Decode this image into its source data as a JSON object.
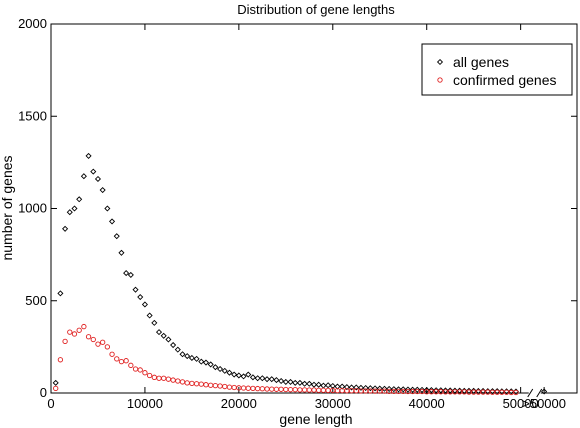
{
  "chart_data": {
    "type": "scatter",
    "title": "Distribution of gene lengths",
    "xlabel": "gene length",
    "ylabel": "number of genes",
    "xlim": [
      0,
      56000
    ],
    "ylim": [
      0,
      2000
    ],
    "x_ticks": [
      0,
      10000,
      20000,
      30000,
      40000,
      50000
    ],
    "x_tick_labels": [
      "0",
      "10000",
      "20000",
      "30000",
      "40000",
      "50000"
    ],
    "x_extra_tick": {
      "x": 52500,
      "label": ">50000"
    },
    "axis_break_at": 51500,
    "y_ticks": [
      0,
      500,
      1000,
      1500,
      2000
    ],
    "y_tick_labels": [
      "0",
      "500",
      "1000",
      "1500",
      "2000"
    ],
    "grid": false,
    "legend": {
      "placement": "top-right",
      "entries": [
        "all genes",
        "confirmed genes"
      ]
    },
    "series": [
      {
        "name": "all genes",
        "marker": "diamond",
        "color": "#000000",
        "points": [
          [
            500,
            55
          ],
          [
            1000,
            540
          ],
          [
            1500,
            890
          ],
          [
            2000,
            980
          ],
          [
            2500,
            1000
          ],
          [
            3000,
            1050
          ],
          [
            3500,
            1175
          ],
          [
            4000,
            1285
          ],
          [
            4500,
            1200
          ],
          [
            5000,
            1160
          ],
          [
            5500,
            1100
          ],
          [
            6000,
            1000
          ],
          [
            6500,
            930
          ],
          [
            7000,
            850
          ],
          [
            7500,
            760
          ],
          [
            8000,
            650
          ],
          [
            8500,
            640
          ],
          [
            9000,
            560
          ],
          [
            9500,
            520
          ],
          [
            10000,
            480
          ],
          [
            10500,
            420
          ],
          [
            11000,
            380
          ],
          [
            11500,
            330
          ],
          [
            12000,
            310
          ],
          [
            12500,
            290
          ],
          [
            13000,
            260
          ],
          [
            13500,
            235
          ],
          [
            14000,
            210
          ],
          [
            14500,
            200
          ],
          [
            15000,
            190
          ],
          [
            15500,
            185
          ],
          [
            16000,
            170
          ],
          [
            16500,
            165
          ],
          [
            17000,
            155
          ],
          [
            17500,
            140
          ],
          [
            18000,
            130
          ],
          [
            18500,
            120
          ],
          [
            19000,
            110
          ],
          [
            19500,
            100
          ],
          [
            20000,
            95
          ],
          [
            20500,
            90
          ],
          [
            21000,
            100
          ],
          [
            21500,
            85
          ],
          [
            22000,
            80
          ],
          [
            22500,
            80
          ],
          [
            23000,
            75
          ],
          [
            23500,
            75
          ],
          [
            24000,
            70
          ],
          [
            24500,
            65
          ],
          [
            25000,
            60
          ],
          [
            25500,
            60
          ],
          [
            26000,
            55
          ],
          [
            26500,
            55
          ],
          [
            27000,
            50
          ],
          [
            27500,
            50
          ],
          [
            28000,
            45
          ],
          [
            28500,
            45
          ],
          [
            29000,
            40
          ],
          [
            29500,
            42
          ],
          [
            30000,
            38
          ],
          [
            30500,
            35
          ],
          [
            31000,
            35
          ],
          [
            31500,
            32
          ],
          [
            32000,
            30
          ],
          [
            32500,
            30
          ],
          [
            33000,
            28
          ],
          [
            33500,
            27
          ],
          [
            34000,
            26
          ],
          [
            34500,
            25
          ],
          [
            35000,
            24
          ],
          [
            35500,
            23
          ],
          [
            36000,
            22
          ],
          [
            36500,
            21
          ],
          [
            37000,
            20
          ],
          [
            37500,
            20
          ],
          [
            38000,
            19
          ],
          [
            38500,
            18
          ],
          [
            39000,
            18
          ],
          [
            39500,
            17
          ],
          [
            40000,
            16
          ],
          [
            40500,
            16
          ],
          [
            41000,
            15
          ],
          [
            41500,
            15
          ],
          [
            42000,
            14
          ],
          [
            42500,
            14
          ],
          [
            43000,
            13
          ],
          [
            43500,
            13
          ],
          [
            44000,
            12
          ],
          [
            44500,
            12
          ],
          [
            45000,
            12
          ],
          [
            45500,
            11
          ],
          [
            46000,
            11
          ],
          [
            46500,
            10
          ],
          [
            47000,
            10
          ],
          [
            47500,
            10
          ],
          [
            48000,
            9
          ],
          [
            48500,
            9
          ],
          [
            49000,
            9
          ],
          [
            49500,
            8
          ],
          [
            52500,
            8
          ]
        ]
      },
      {
        "name": "confirmed genes",
        "marker": "circle",
        "color": "#e02020",
        "points": [
          [
            500,
            25
          ],
          [
            1000,
            180
          ],
          [
            1500,
            280
          ],
          [
            2000,
            330
          ],
          [
            2500,
            320
          ],
          [
            3000,
            340
          ],
          [
            3500,
            360
          ],
          [
            4000,
            305
          ],
          [
            4500,
            290
          ],
          [
            5000,
            265
          ],
          [
            5500,
            275
          ],
          [
            6000,
            250
          ],
          [
            6500,
            210
          ],
          [
            7000,
            185
          ],
          [
            7500,
            170
          ],
          [
            8000,
            175
          ],
          [
            8500,
            150
          ],
          [
            9000,
            130
          ],
          [
            9500,
            125
          ],
          [
            10000,
            110
          ],
          [
            10500,
            95
          ],
          [
            11000,
            85
          ],
          [
            11500,
            80
          ],
          [
            12000,
            80
          ],
          [
            12500,
            75
          ],
          [
            13000,
            70
          ],
          [
            13500,
            65
          ],
          [
            14000,
            60
          ],
          [
            14500,
            55
          ],
          [
            15000,
            52
          ],
          [
            15500,
            50
          ],
          [
            16000,
            48
          ],
          [
            16500,
            45
          ],
          [
            17000,
            42
          ],
          [
            17500,
            40
          ],
          [
            18000,
            38
          ],
          [
            18500,
            35
          ],
          [
            19000,
            32
          ],
          [
            19500,
            30
          ],
          [
            20000,
            28
          ],
          [
            20500,
            27
          ],
          [
            21000,
            26
          ],
          [
            21500,
            25
          ],
          [
            22000,
            24
          ],
          [
            22500,
            23
          ],
          [
            23000,
            22
          ],
          [
            23500,
            21
          ],
          [
            24000,
            20
          ],
          [
            24500,
            20
          ],
          [
            25000,
            19
          ],
          [
            25500,
            18
          ],
          [
            26000,
            18
          ],
          [
            26500,
            17
          ],
          [
            27000,
            17
          ],
          [
            27500,
            16
          ],
          [
            28000,
            16
          ],
          [
            28500,
            15
          ],
          [
            29000,
            15
          ],
          [
            29500,
            14
          ],
          [
            30000,
            14
          ],
          [
            30500,
            13
          ],
          [
            31000,
            13
          ],
          [
            31500,
            12
          ],
          [
            32000,
            12
          ],
          [
            32500,
            12
          ],
          [
            33000,
            11
          ],
          [
            33500,
            11
          ],
          [
            34000,
            11
          ],
          [
            34500,
            10
          ],
          [
            35000,
            10
          ],
          [
            35500,
            10
          ],
          [
            36000,
            9
          ],
          [
            36500,
            9
          ],
          [
            37000,
            9
          ],
          [
            37500,
            9
          ],
          [
            38000,
            8
          ],
          [
            38500,
            8
          ],
          [
            39000,
            8
          ],
          [
            39500,
            8
          ],
          [
            40000,
            7
          ],
          [
            40500,
            7
          ],
          [
            41000,
            7
          ],
          [
            41500,
            7
          ],
          [
            42000,
            6
          ],
          [
            42500,
            6
          ],
          [
            43000,
            6
          ],
          [
            43500,
            6
          ],
          [
            44000,
            6
          ],
          [
            44500,
            5
          ],
          [
            45000,
            5
          ],
          [
            45500,
            5
          ],
          [
            46000,
            5
          ],
          [
            46500,
            5
          ],
          [
            47000,
            4
          ],
          [
            47500,
            4
          ],
          [
            48000,
            4
          ],
          [
            48500,
            4
          ],
          [
            49000,
            3
          ],
          [
            49500,
            3
          ]
        ]
      }
    ]
  }
}
